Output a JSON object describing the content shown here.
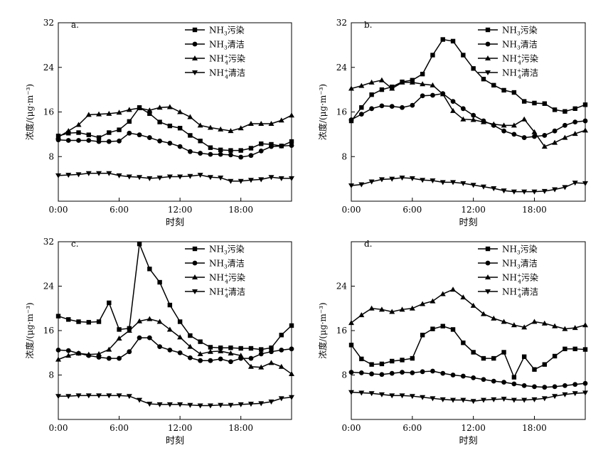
{
  "figure": {
    "xlabel": "时刻",
    "ylabel": "浓度/(μg·m⁻³)"
  },
  "chart_data": [
    {
      "type": "line",
      "panel_label": "a.",
      "xlabel": "时刻",
      "ylabel": "浓度/(μg·m⁻³)",
      "x": [
        0,
        1,
        2,
        3,
        4,
        5,
        6,
        7,
        8,
        9,
        10,
        11,
        12,
        13,
        14,
        15,
        16,
        17,
        18,
        19,
        20,
        21,
        22,
        23
      ],
      "xlim": [
        0,
        23
      ],
      "xticks": [
        0,
        6,
        12,
        18
      ],
      "xtick_labels": [
        "0:00",
        "6:00",
        "12:00",
        "18:00"
      ],
      "ylim": [
        0,
        32
      ],
      "yticks": [
        8,
        16,
        24,
        32
      ],
      "legend": {
        "position": "top-right"
      },
      "series": [
        {
          "name": "NH₃污染",
          "marker": "square",
          "values": [
            11.7,
            12.2,
            12.3,
            11.9,
            11.4,
            12.3,
            12.8,
            14.3,
            16.8,
            15.7,
            14.2,
            13.5,
            13.1,
            11.8,
            10.8,
            9.6,
            9.2,
            9.1,
            9.1,
            9.5,
            10.3,
            10.2,
            9.9,
            10.7
          ]
        },
        {
          "name": "NH₃清洁",
          "marker": "circle",
          "values": [
            11.0,
            10.9,
            10.9,
            10.9,
            10.7,
            10.7,
            10.8,
            12.2,
            11.9,
            11.4,
            10.8,
            10.4,
            9.8,
            8.9,
            8.6,
            8.4,
            8.4,
            8.3,
            7.9,
            8.2,
            9.0,
            9.8,
            9.9,
            10.0
          ]
        },
        {
          "name": "NH₄⁺污染",
          "marker": "triangle-up",
          "values": [
            11.5,
            12.6,
            13.7,
            15.5,
            15.6,
            15.7,
            15.9,
            16.4,
            16.7,
            16.3,
            16.8,
            16.9,
            16.0,
            15.1,
            13.6,
            13.2,
            12.9,
            12.6,
            13.1,
            13.9,
            13.9,
            13.9,
            14.5,
            15.4
          ]
        },
        {
          "name": "NH₄⁺清洁",
          "marker": "triangle-down",
          "values": [
            4.6,
            4.7,
            4.8,
            5.0,
            5.0,
            5.0,
            4.6,
            4.4,
            4.3,
            4.1,
            4.2,
            4.4,
            4.4,
            4.5,
            4.7,
            4.3,
            4.2,
            3.6,
            3.6,
            3.8,
            3.9,
            4.3,
            4.1,
            4.1
          ]
        }
      ]
    },
    {
      "type": "line",
      "panel_label": "b.",
      "xlabel": "时刻",
      "ylabel": "浓度/(μg·m⁻³)",
      "x": [
        0,
        1,
        2,
        3,
        4,
        5,
        6,
        7,
        8,
        9,
        10,
        11,
        12,
        13,
        14,
        15,
        16,
        17,
        18,
        19,
        20,
        21,
        22,
        23
      ],
      "xlim": [
        0,
        23
      ],
      "xticks": [
        0,
        6,
        12,
        18
      ],
      "xtick_labels": [
        "0:00",
        "6:00",
        "12:00",
        "18:00"
      ],
      "ylim": [
        0,
        32
      ],
      "yticks": [
        8,
        16,
        24,
        32
      ],
      "legend": {
        "position": "top-right"
      },
      "series": [
        {
          "name": "NH₃污染",
          "marker": "square",
          "values": [
            14.4,
            16.8,
            19.1,
            20.0,
            20.5,
            21.4,
            21.7,
            22.8,
            26.2,
            29.0,
            28.7,
            26.2,
            23.8,
            21.9,
            20.8,
            19.9,
            19.5,
            17.9,
            17.6,
            17.5,
            16.4,
            16.1,
            16.6,
            17.3
          ]
        },
        {
          "name": "NH₃清洁",
          "marker": "circle",
          "values": [
            14.6,
            15.6,
            16.6,
            17.1,
            17.0,
            16.8,
            17.2,
            18.9,
            19.0,
            19.3,
            17.9,
            16.6,
            15.4,
            14.4,
            13.6,
            12.6,
            12.0,
            11.4,
            11.6,
            11.8,
            12.6,
            13.6,
            14.2,
            14.4
          ]
        },
        {
          "name": "NH₄⁺污染",
          "marker": "triangle-up",
          "values": [
            20.2,
            20.7,
            21.3,
            21.7,
            20.2,
            21.3,
            21.3,
            21.0,
            20.8,
            19.2,
            16.2,
            14.7,
            14.6,
            14.2,
            13.8,
            13.6,
            13.6,
            14.7,
            12.4,
            9.8,
            10.5,
            11.4,
            12.1,
            12.7
          ]
        },
        {
          "name": "NH₄⁺清洁",
          "marker": "triangle-down",
          "values": [
            2.8,
            3.0,
            3.5,
            3.9,
            4.0,
            4.2,
            4.1,
            3.8,
            3.7,
            3.4,
            3.4,
            3.2,
            2.9,
            2.6,
            2.3,
            1.9,
            1.7,
            1.7,
            1.7,
            1.8,
            2.1,
            2.5,
            3.3,
            3.2
          ]
        }
      ]
    },
    {
      "type": "line",
      "panel_label": "c.",
      "xlabel": "时刻",
      "ylabel": "浓度/(μg·m⁻³)",
      "x": [
        0,
        1,
        2,
        3,
        4,
        5,
        6,
        7,
        8,
        9,
        10,
        11,
        12,
        13,
        14,
        15,
        16,
        17,
        18,
        19,
        20,
        21,
        22,
        23
      ],
      "xlim": [
        0,
        23
      ],
      "xticks": [
        0,
        6,
        12,
        18
      ],
      "xtick_labels": [
        "0:00",
        "6:00",
        "12:00",
        "18:00"
      ],
      "ylim": [
        0,
        32
      ],
      "yticks": [
        8,
        16,
        24,
        32
      ],
      "legend": {
        "position": "top-right"
      },
      "series": [
        {
          "name": "NH₃污染",
          "marker": "square",
          "values": [
            18.6,
            18.0,
            17.6,
            17.5,
            17.6,
            21.0,
            16.2,
            16.4,
            31.6,
            27.1,
            24.7,
            20.6,
            17.6,
            15.1,
            14.0,
            13.0,
            12.9,
            12.9,
            12.8,
            12.8,
            12.6,
            12.9,
            15.2,
            16.9
          ]
        },
        {
          "name": "NH₃清洁",
          "marker": "circle",
          "values": [
            12.5,
            12.4,
            11.9,
            11.5,
            11.2,
            11.0,
            11.0,
            12.2,
            14.7,
            14.7,
            13.1,
            12.5,
            12.0,
            11.1,
            10.6,
            10.6,
            10.9,
            10.4,
            11.0,
            11.0,
            11.8,
            12.2,
            12.5,
            12.7
          ]
        },
        {
          "name": "NH₄⁺污染",
          "marker": "triangle-up",
          "values": [
            10.8,
            11.5,
            11.9,
            11.7,
            11.8,
            12.6,
            14.6,
            16.0,
            17.7,
            18.1,
            17.6,
            16.2,
            14.8,
            13.1,
            11.8,
            12.2,
            12.3,
            11.9,
            11.5,
            9.5,
            9.4,
            10.2,
            9.5,
            8.2
          ]
        },
        {
          "name": "NH₄⁺清洁",
          "marker": "triangle-down",
          "values": [
            4.2,
            4.2,
            4.3,
            4.3,
            4.3,
            4.3,
            4.3,
            4.2,
            3.5,
            2.8,
            2.7,
            2.7,
            2.7,
            2.6,
            2.5,
            2.5,
            2.6,
            2.6,
            2.7,
            2.8,
            2.9,
            3.2,
            3.8,
            4.0
          ]
        }
      ]
    },
    {
      "type": "line",
      "panel_label": "d.",
      "xlabel": "时刻",
      "ylabel": "浓度/(μg·m⁻³)",
      "x": [
        0,
        1,
        2,
        3,
        4,
        5,
        6,
        7,
        8,
        9,
        10,
        11,
        12,
        13,
        14,
        15,
        16,
        17,
        18,
        19,
        20,
        21,
        22,
        23
      ],
      "xlim": [
        0,
        23
      ],
      "xticks": [
        0,
        6,
        12,
        18
      ],
      "xtick_labels": [
        "0:00",
        "6:00",
        "12:00",
        "18:00"
      ],
      "ylim": [
        0,
        32
      ],
      "yticks": [
        8,
        16,
        24
      ],
      "legend": {
        "position": "top-right"
      },
      "series": [
        {
          "name": "NH₃污染",
          "marker": "square",
          "values": [
            13.4,
            10.9,
            9.9,
            10.0,
            10.5,
            10.7,
            11.0,
            15.2,
            16.3,
            16.8,
            16.2,
            13.8,
            12.1,
            11.0,
            11.0,
            12.1,
            7.6,
            11.3,
            9.0,
            9.9,
            11.4,
            12.7,
            12.7,
            12.6
          ]
        },
        {
          "name": "NH₃清洁",
          "marker": "circle",
          "values": [
            8.5,
            8.4,
            8.2,
            8.1,
            8.3,
            8.5,
            8.4,
            8.6,
            8.7,
            8.3,
            8.0,
            7.8,
            7.5,
            7.2,
            6.9,
            6.7,
            6.4,
            6.1,
            5.9,
            5.8,
            5.9,
            6.1,
            6.3,
            6.5
          ]
        },
        {
          "name": "NH₄⁺污染",
          "marker": "triangle-up",
          "values": [
            17.4,
            18.8,
            20.0,
            19.8,
            19.4,
            19.8,
            20.0,
            20.8,
            21.3,
            22.6,
            23.4,
            22.0,
            20.5,
            19.0,
            18.2,
            17.6,
            17.0,
            16.6,
            17.6,
            17.3,
            16.8,
            16.3,
            16.5,
            17.0
          ]
        },
        {
          "name": "NH₄⁺清洁",
          "marker": "triangle-down",
          "values": [
            4.9,
            4.8,
            4.7,
            4.5,
            4.3,
            4.3,
            4.2,
            4.0,
            3.8,
            3.6,
            3.5,
            3.5,
            3.3,
            3.5,
            3.6,
            3.7,
            3.5,
            3.5,
            3.6,
            3.8,
            4.2,
            4.5,
            4.7,
            4.8
          ]
        }
      ]
    }
  ]
}
